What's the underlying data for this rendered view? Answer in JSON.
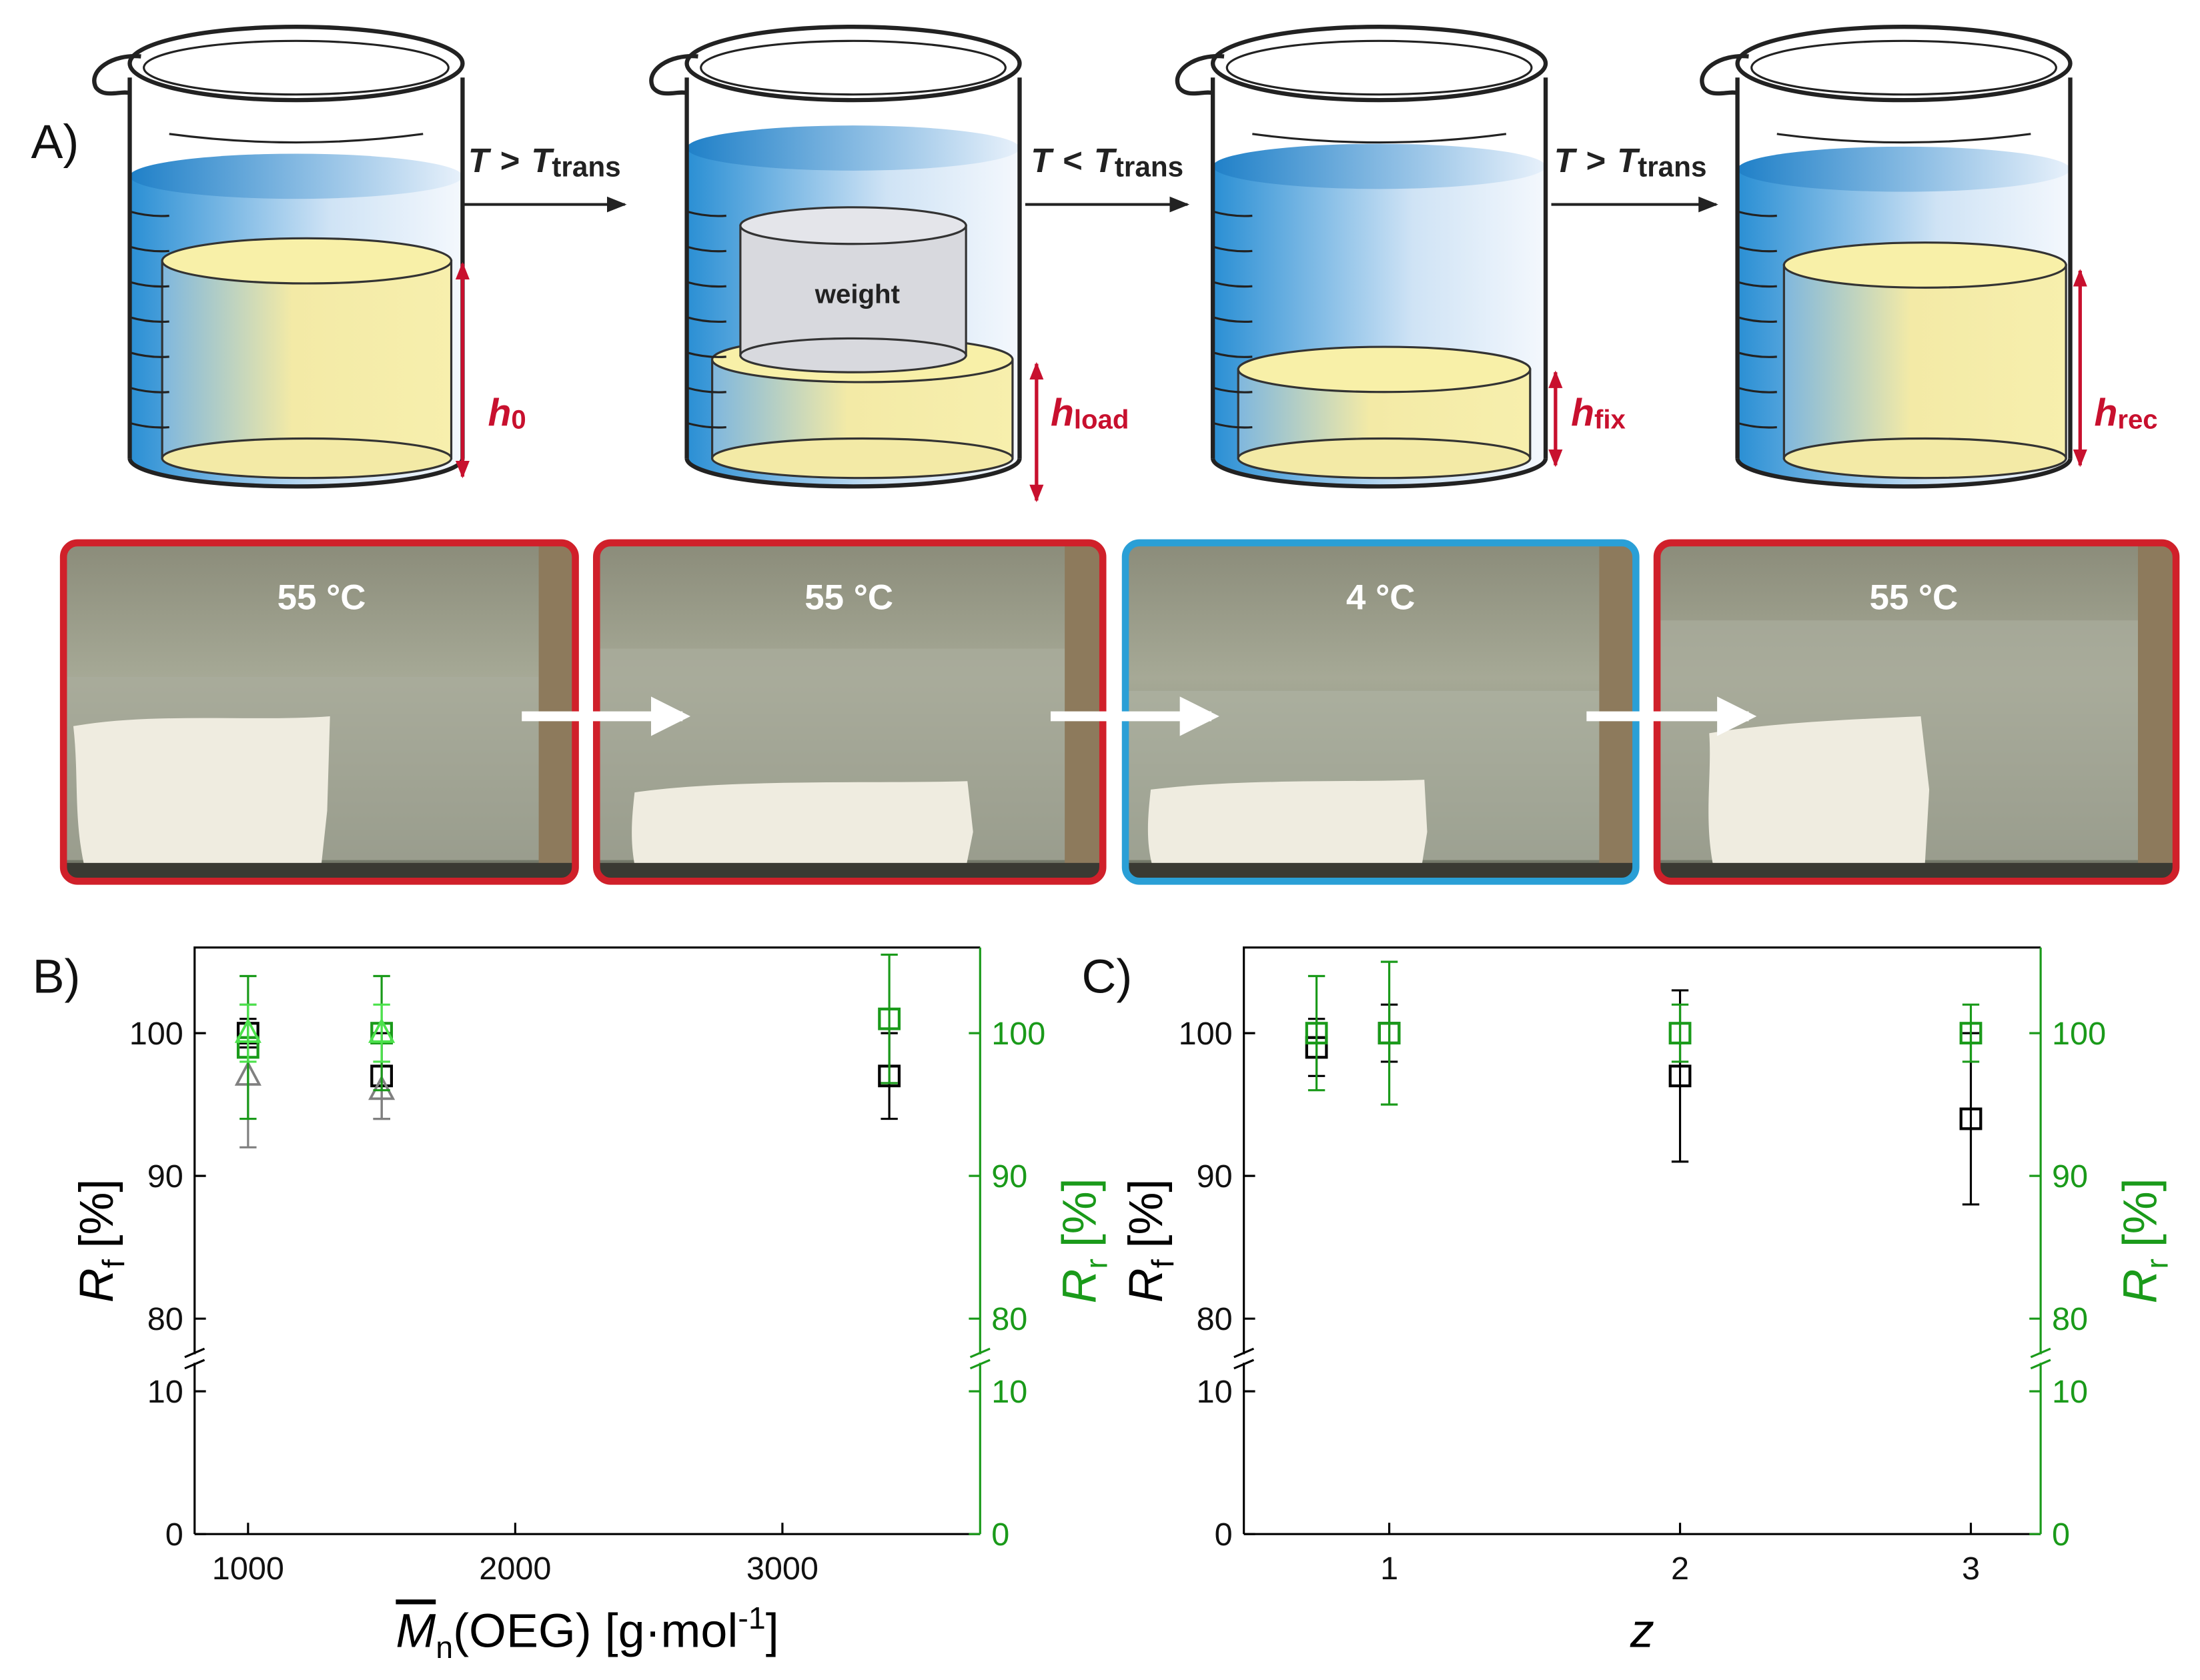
{
  "panel_a": {
    "label": "A)",
    "transitions": [
      {
        "left": "T",
        "relation": ">",
        "right": "T",
        "subscript": "trans"
      },
      {
        "left": "T",
        "relation": "<",
        "right": "T",
        "subscript": "trans"
      },
      {
        "left": "T",
        "relation": ">",
        "right": "T",
        "subscript": "trans"
      }
    ],
    "weight_label": "weight",
    "heights": [
      {
        "symbol": "h",
        "subscript": "0"
      },
      {
        "symbol": "h",
        "subscript": "load"
      },
      {
        "symbol": "h",
        "subscript": "fix"
      },
      {
        "symbol": "h",
        "subscript": "rec"
      }
    ],
    "photos": [
      {
        "temperature": "55 °C"
      },
      {
        "temperature": "55 °C"
      },
      {
        "temperature": "4 °C"
      },
      {
        "temperature": "55 °C"
      }
    ]
  },
  "chart_data": [
    {
      "type": "scatter",
      "panel_label": "B)",
      "xlabel": {
        "symbol": "M",
        "symbol_overline": true,
        "subscript": "n",
        "text": "(OEG) [g·mol",
        "superscript": "-1",
        "closing": "]"
      },
      "ylabel": {
        "symbol": "R",
        "subscript": "f",
        "unit": "[%]"
      },
      "y2label": {
        "symbol": "R",
        "subscript": "r",
        "unit": "[%]"
      },
      "xlim": [
        800,
        3740
      ],
      "xticks": [
        1000,
        2000,
        3000
      ],
      "ylim": [
        0,
        106
      ],
      "ybreak": [
        12,
        77.5
      ],
      "yticks": [
        0,
        10,
        80,
        90,
        100
      ],
      "y2lim": [
        0,
        106
      ],
      "y2ticks": [
        0,
        10,
        80,
        90,
        100
      ],
      "y2color": "#1a9a1a",
      "series": [
        {
          "color": "#000000",
          "marker": "square",
          "x": [
            1000,
            1500,
            3400
          ],
          "values": [
            100,
            97,
            97
          ],
          "errors": [
            1,
            3,
            3
          ]
        },
        {
          "color": "#808080",
          "marker": "triangle",
          "x": [
            1000,
            1500
          ],
          "values": [
            97,
            96
          ],
          "errors": [
            5,
            2
          ]
        },
        {
          "color": "#1a9a1a",
          "marker": "square",
          "axis": "y2",
          "x": [
            1000,
            1500,
            3400
          ],
          "values": [
            99,
            100,
            101
          ],
          "errors": [
            5,
            4,
            4.5
          ]
        },
        {
          "color": "#4ce24c",
          "marker": "triangle",
          "axis": "y2",
          "x": [
            1000,
            1500
          ],
          "values": [
            100,
            100
          ],
          "errors": [
            2,
            2
          ]
        }
      ]
    },
    {
      "type": "scatter",
      "panel_label": "C)",
      "xlabel": {
        "symbol": "z"
      },
      "ylabel": {
        "symbol": "R",
        "subscript": "f",
        "unit": "[%]"
      },
      "y2label": {
        "symbol": "R",
        "subscript": "r",
        "unit": "[%]"
      },
      "xlim": [
        0.5,
        3.24
      ],
      "xticks": [
        1,
        2,
        3
      ],
      "ylim": [
        0,
        106
      ],
      "ybreak": [
        12,
        77.5
      ],
      "yticks": [
        0,
        10,
        80,
        90,
        100
      ],
      "y2lim": [
        0,
        106
      ],
      "y2ticks": [
        0,
        10,
        80,
        90,
        100
      ],
      "y2color": "#1a9a1a",
      "series": [
        {
          "color": "#000000",
          "marker": "square",
          "x": [
            0.75,
            1,
            2,
            3
          ],
          "values": [
            99,
            100,
            97,
            94
          ],
          "errors": [
            2,
            2,
            6,
            6
          ]
        },
        {
          "color": "#1a9a1a",
          "marker": "square",
          "axis": "y2",
          "x": [
            0.75,
            1,
            2,
            3
          ],
          "values": [
            100,
            100,
            100,
            100
          ],
          "errors": [
            4,
            5,
            2,
            2
          ]
        }
      ]
    }
  ]
}
